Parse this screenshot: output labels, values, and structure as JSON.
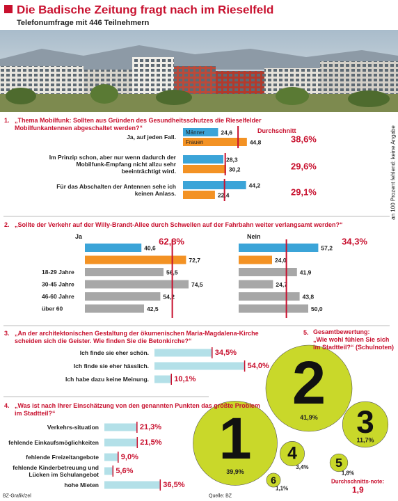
{
  "header": {
    "title": "Die Badische Zeitung fragt nach im Rieselfeld",
    "subtitle": "Telefonumfrage mit 446 Teilnehmern"
  },
  "side_note": "an 100 Prozent fehlend: keine Angabe",
  "footer": {
    "credit": "BZ-Grafik/zel",
    "source": "Quelle: BZ"
  },
  "chart_data": [
    {
      "type": "bar",
      "number": "1.",
      "title": "„Thema Mobilfunk: Sollten aus Gründen des Gesundheitsschutzes die Rieselfelder Mobilfunkantennen abgeschaltet werden?“",
      "categories": [
        "Ja, auf jeden Fall.",
        "Im Prinzip schon, aber nur wenn dadurch der Mobilfunk-Empfang nicht allzu sehr beeinträchtigt wird.",
        "Für das Abschalten der Antennen sehe ich keinen Anlass."
      ],
      "series": [
        {
          "name": "Männer",
          "color": "#3ba4d8",
          "values": [
            24.6,
            28.3,
            44.2
          ],
          "value_labels": [
            "24,6",
            "28,3",
            "44,2"
          ]
        },
        {
          "name": "Frauen",
          "color": "#f39224",
          "values": [
            44.8,
            30.2,
            22.4
          ],
          "value_labels": [
            "44,8",
            "30,2",
            "22,4"
          ]
        }
      ],
      "average": {
        "label": "Durchschnitt",
        "color": "#c8102e",
        "values": [
          38.6,
          29.6,
          29.1
        ],
        "value_labels": [
          "38,6%",
          "29,6%",
          "29,1%"
        ]
      }
    },
    {
      "type": "bar",
      "number": "2.",
      "title": "„Sollte der Verkehr auf der Willy-Brandt-Allee durch Schwellen auf der Fahrbahn weiter verlangsamt werden?“",
      "categories": [
        null,
        null,
        "18-29 Jahre",
        "30-45 Jahre",
        "46-60 Jahre",
        "über 60"
      ],
      "colors": [
        "#3ba4d8",
        "#f39224",
        "#a7a7a7",
        "#a7a7a7",
        "#a7a7a7",
        "#a7a7a7"
      ],
      "average_color": "#c8102e",
      "panels": [
        {
          "name": "Ja",
          "total": 62.8,
          "total_label": "62,8%",
          "values": [
            40.6,
            72.7,
            56.5,
            74.5,
            54.2,
            42.5
          ],
          "value_labels": [
            "40,6",
            "72,7",
            "56,5",
            "74,5",
            "54,2",
            "42,5"
          ]
        },
        {
          "name": "Nein",
          "total": 34.3,
          "total_label": "34,3%",
          "values": [
            57.2,
            24.0,
            41.9,
            24.7,
            43.8,
            50.0
          ],
          "value_labels": [
            "57,2",
            "24,0",
            "41,9",
            "24,7",
            "43,8",
            "50,0"
          ]
        }
      ]
    },
    {
      "type": "bar",
      "number": "3.",
      "title": "„An der architektonischen Gestaltung der ökumenischen Maria-Magdalena-Kirche scheiden sich die Geister. Wie finden Sie die Betonkirche?“",
      "categories": [
        "Ich finde sie eher schön.",
        "Ich finde sie eher hässlich.",
        "Ich habe dazu keine Meinung."
      ],
      "values": [
        34.5,
        54.0,
        10.1
      ],
      "value_labels": [
        "34,5%",
        "54,0%",
        "10,1%"
      ],
      "color": "#b3e0e8",
      "marker_color": "#c8102e"
    },
    {
      "type": "bar",
      "number": "4.",
      "title": "„Was ist nach Ihrer Einschätzung von den genannten Punkten das größte Problem im Stadtteil?“",
      "categories": [
        "Verkehrs-situation",
        "fehlende Einkaufsmöglichkeiten",
        "fehlende Freizeitangebote",
        "fehlende Kinderbetreuung und Lücken im Schulangebot",
        "hohe Mieten"
      ],
      "values": [
        21.3,
        21.5,
        9.0,
        5.6,
        36.5
      ],
      "value_labels": [
        "21,3%",
        "21,5%",
        "9,0%",
        "5,6%",
        "36,5%"
      ],
      "color": "#b3e0e8",
      "marker_color": "#c8102e"
    },
    {
      "type": "bubble",
      "number": "5.",
      "title": "Gesamtbewertung:",
      "subtitle": "„Wie wohl fühlen Sie sich im Stadtteil?“ (Schulnoten)",
      "categories": [
        "1",
        "2",
        "3",
        "4",
        "5",
        "6"
      ],
      "values": [
        39.9,
        41.9,
        11.7,
        3.4,
        1.8,
        1.1
      ],
      "value_labels": [
        "39,9%",
        "41,9%",
        "11,7%",
        "3,4%",
        "1,8%",
        "1,1%"
      ],
      "color": "#c9d82a",
      "average": {
        "label": "Durchschnitts-note:",
        "value": 1.9,
        "value_label": "1,9",
        "color": "#c8102e"
      }
    }
  ]
}
